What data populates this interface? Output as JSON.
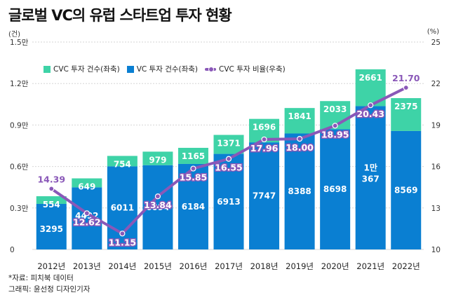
{
  "header": {
    "title": "글로벌 VC의 유럽 스타트업 투자 현황"
  },
  "units": {
    "left": "(건)",
    "right": "(%)"
  },
  "legend": {
    "cvc_count": "CVC 투자 건수(좌축)",
    "vc_count": "VC 투자 건수(좌축)",
    "cvc_ratio": "CVC 투자 비율(우축)"
  },
  "footer": {
    "source": "*자료: 피치북 데이터",
    "credit": "그래픽: 윤선정 디자인기자"
  },
  "colors": {
    "vc": "#0a7fd2",
    "cvc": "#3ed3a7",
    "line": "#8a58b8",
    "label_purple": "#8a58b8"
  },
  "chart_data": {
    "type": "bar",
    "categories": [
      "2012년",
      "2013년",
      "2014년",
      "2015년",
      "2016년",
      "2017년",
      "2018년",
      "2019년",
      "2020년",
      "2021년",
      "2022년"
    ],
    "series": [
      {
        "name": "VC 투자 건수(좌축)",
        "values": [
          3295,
          4492,
          6011,
          6094,
          6184,
          6913,
          7747,
          8388,
          8698,
          10367,
          8569
        ],
        "labels": [
          "3295",
          "4492",
          "6011",
          "6094",
          "6184",
          "6913",
          "7747",
          "8388",
          "8698",
          "1만 367",
          "8569"
        ]
      },
      {
        "name": "CVC 투자 건수(좌축)",
        "values": [
          554,
          649,
          754,
          979,
          1165,
          1371,
          1696,
          1841,
          2033,
          2661,
          2375
        ],
        "labels": [
          "554",
          "649",
          "754",
          "979",
          "1165",
          "1371",
          "1696",
          "1841",
          "2033",
          "2661",
          "2375"
        ]
      },
      {
        "name": "CVC 투자 비율(우축)",
        "type": "line",
        "axis": "right",
        "values": [
          14.39,
          12.62,
          11.15,
          13.84,
          15.85,
          16.55,
          17.96,
          18.0,
          18.95,
          20.43,
          21.7
        ],
        "labels": [
          "14.39",
          "12.62",
          "11.15",
          "13.84",
          "15.85",
          "16.55",
          "17.96",
          "18.00",
          "18.95",
          "20.43",
          "21.70"
        ]
      }
    ],
    "stacked": true,
    "ylim": [
      0,
      15000
    ],
    "y_ticks": [
      "0",
      "0.3만",
      "0.6만",
      "0.9만",
      "1.2만",
      "1.5만"
    ],
    "y2lim": [
      10,
      25
    ],
    "y2_ticks": [
      "10",
      "13",
      "16",
      "19",
      "22",
      "25"
    ],
    "grid": true,
    "legend_position": "top-left"
  }
}
